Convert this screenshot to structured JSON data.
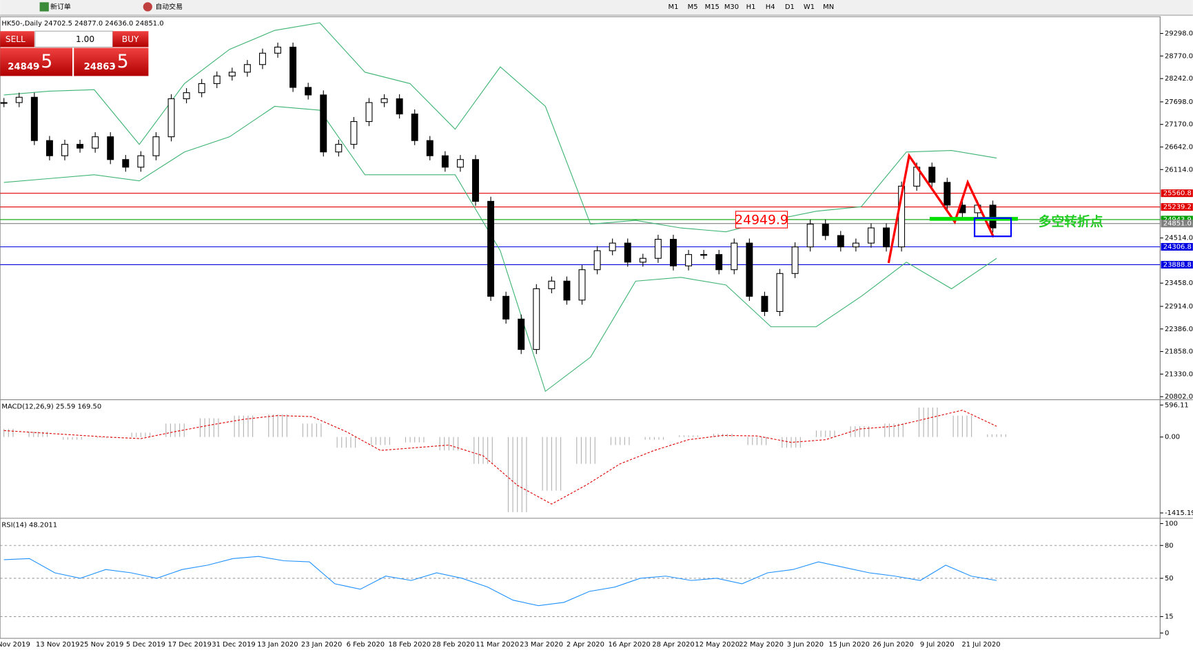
{
  "toolbar": {
    "new_order": "新订单",
    "auto_trading": "自动交易",
    "timeframes": [
      "M1",
      "M5",
      "M15",
      "M30",
      "H1",
      "H4",
      "D1",
      "W1",
      "MN"
    ]
  },
  "trade_panel": {
    "sell": "SELL",
    "buy": "BUY",
    "lots": "1.00",
    "sell_big": "24849",
    "sell_small": ".5",
    "buy_big": "24863",
    "buy_small": ".5"
  },
  "main_chart": {
    "header": "HK50-,Daily  24702.5 24877.0 24636.0 24851.0",
    "price_ticks": [
      {
        "value": 29298,
        "label": "29298.0"
      },
      {
        "value": 28770,
        "label": "28770.0"
      },
      {
        "value": 28242,
        "label": "28242.0"
      },
      {
        "value": 27698,
        "label": "27698.0"
      },
      {
        "value": 27170,
        "label": "27170.0"
      },
      {
        "value": 26642,
        "label": "26642.0"
      },
      {
        "value": 26114,
        "label": "26114.0"
      },
      {
        "value": 24514,
        "label": "24514.0"
      },
      {
        "value": 23458,
        "label": "23458.0"
      },
      {
        "value": 22914,
        "label": "22914.0"
      },
      {
        "value": 22386,
        "label": "22386.0"
      },
      {
        "value": 21858,
        "label": "21858.0"
      },
      {
        "value": 21330,
        "label": "21330.0"
      },
      {
        "value": 20802,
        "label": "20802.0"
      }
    ],
    "closes": [
      27681,
      27805,
      26792,
      26437,
      26704,
      26615,
      26881,
      26348,
      26170,
      26437,
      26881,
      27770,
      27912,
      28125,
      28303,
      28392,
      28570,
      28836,
      28978,
      28036,
      27859,
      26526,
      26704,
      27237,
      27681,
      27770,
      27414,
      26792,
      26437,
      26170,
      26348,
      25371,
      23150,
      22617,
      21906,
      23327,
      23505,
      23061,
      23772,
      24216,
      24394,
      23949,
      24038,
      24483,
      23861,
      24127,
      24127,
      23772,
      24394,
      23150,
      22794,
      23683,
      24305,
      24838,
      24571,
      24305,
      24394,
      24749,
      24305,
      25726,
      26170,
      25815,
      25282,
      25104,
      25282,
      24749
    ],
    "bb_upper": [
      27858,
      27947,
      27983,
      26703,
      28125,
      28925,
      29369,
      29547,
      28392,
      28125,
      27058,
      28516,
      27592,
      24837,
      24926,
      24748,
      24659,
      24926,
      25139,
      25246,
      26525,
      26561,
      26383
    ],
    "bb_lower": [
      25814,
      25903,
      25992,
      25850,
      26525,
      26881,
      27592,
      27503,
      25992,
      25992,
      25992,
      24215,
      20927,
      21726,
      23504,
      23593,
      23415,
      22437,
      22437,
      23148,
      23948,
      23326,
      24037
    ],
    "levels": [
      {
        "value": 25560.8,
        "label": "25560.8",
        "color": "#e00000"
      },
      {
        "value": 25239.2,
        "label": "25239.2",
        "color": "#e00000"
      },
      {
        "value": 24943.9,
        "label": "24943.9",
        "color": "#00a000"
      },
      {
        "value": 24851.0,
        "label": "24851.0",
        "color": "#808080"
      },
      {
        "value": 24306.8,
        "label": "24306.8",
        "color": "#0000e0"
      },
      {
        "value": 23888.8,
        "label": "23888.8",
        "color": "#0000e0"
      }
    ],
    "annotation_price": "24949.9",
    "annotation_text": "多空转折点"
  },
  "macd": {
    "header": "MACD(12,26,9) 25.59 169.50",
    "ticks": [
      {
        "value": 596.11,
        "label": "596.11"
      },
      {
        "value": 0,
        "label": "0.00"
      },
      {
        "value": -1415.19,
        "label": "-1415.19"
      }
    ],
    "histogram": [
      150,
      100,
      -50,
      -20,
      80,
      250,
      350,
      400,
      420,
      250,
      -200,
      -150,
      -100,
      -250,
      -500,
      -1400,
      -1000,
      -500,
      -150,
      -50,
      30,
      60,
      -150,
      -200,
      120,
      200,
      250,
      550,
      400,
      50
    ],
    "signal": [
      120,
      80,
      40,
      0,
      -30,
      100,
      220,
      330,
      400,
      380,
      100,
      -250,
      -200,
      -150,
      -350,
      -900,
      -1250,
      -900,
      -500,
      -250,
      -50,
      30,
      20,
      -100,
      -50,
      150,
      200,
      350,
      500,
      200
    ]
  },
  "rsi": {
    "header": "RSI(14) 48.2011",
    "ticks": [
      100,
      80,
      50,
      15,
      0
    ],
    "levels": [
      80,
      50,
      15
    ],
    "values": [
      67,
      68,
      55,
      50,
      58,
      55,
      50,
      58,
      62,
      68,
      70,
      66,
      65,
      45,
      40,
      52,
      48,
      55,
      50,
      42,
      30,
      25,
      28,
      38,
      42,
      50,
      52,
      48,
      50,
      45,
      55,
      58,
      65,
      60,
      55,
      52,
      48,
      62,
      52,
      48
    ]
  },
  "dates": [
    "Nov 2019",
    "13 Nov 2019",
    "25 Nov 2019",
    "5 Dec 2019",
    "17 Dec 2019",
    "31 Dec 2019",
    "13 Jan 2020",
    "23 Jan 2020",
    "6 Feb 2020",
    "18 Feb 2020",
    "28 Feb 2020",
    "11 Mar 2020",
    "23 Mar 2020",
    "2 Apr 2020",
    "16 Apr 2020",
    "28 Apr 2020",
    "12 May 2020",
    "22 May 2020",
    "3 Jun 2020",
    "15 Jun 2020",
    "26 Jun 2020",
    "9 Jul 2020",
    "21 Jul 2020"
  ]
}
